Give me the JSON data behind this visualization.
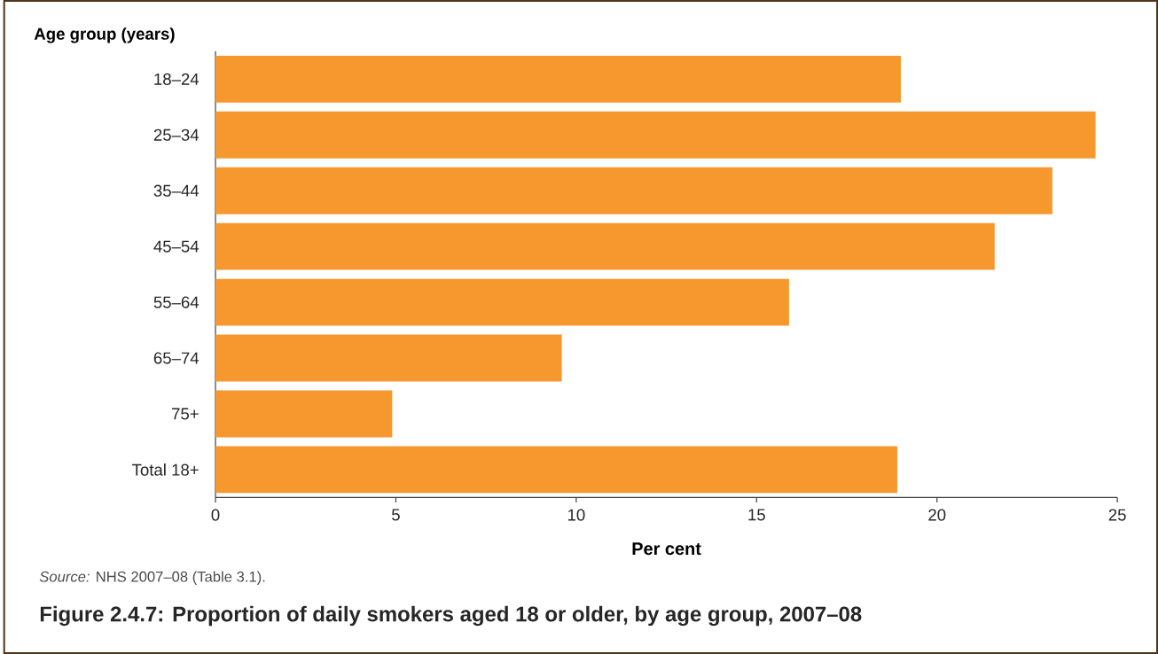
{
  "chart_data": {
    "type": "bar",
    "orientation": "horizontal",
    "title": "Figure 2.4.7: Proportion of daily smokers aged 18 or older, by age group, 2007–08",
    "xlabel": "Per cent",
    "ylabel": "Age group (years)",
    "annotations": [
      "*Source:* NHS 2007–08 (Table 3.1)."
    ],
    "categories": [
      "18–24",
      "25–34",
      "35–44",
      "45–54",
      "55–64",
      "65–74",
      "75+",
      "Total 18+"
    ],
    "values": [
      19.0,
      24.4,
      23.2,
      21.6,
      15.9,
      9.6,
      4.9,
      18.9
    ],
    "color": "#f7982f",
    "xlim": [
      0,
      25
    ],
    "xticks": [
      0,
      5,
      10,
      15,
      20,
      25
    ]
  }
}
